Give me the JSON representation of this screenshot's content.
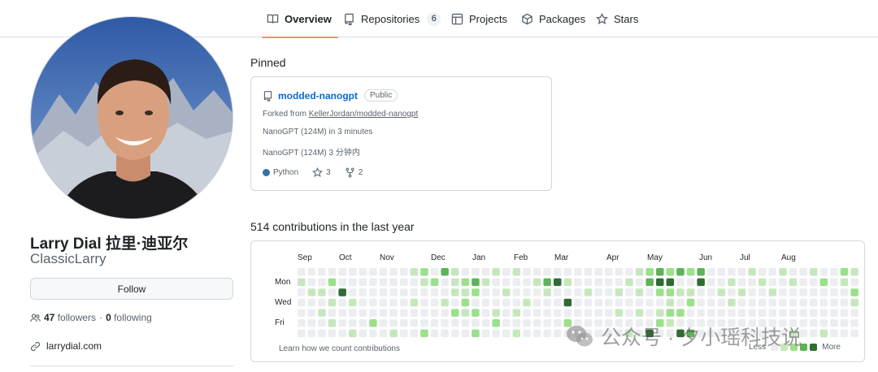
{
  "nav": {
    "tabs": [
      {
        "label": "Overview",
        "icon": "book-icon"
      },
      {
        "label": "Repositories",
        "icon": "repo-icon",
        "count": "6"
      },
      {
        "label": "Projects",
        "icon": "table-icon"
      },
      {
        "label": "Packages",
        "icon": "package-icon"
      },
      {
        "label": "Stars",
        "icon": "star-icon"
      }
    ]
  },
  "profile": {
    "name": "Larry Dial  拉里·迪亚尔",
    "username": "ClassicLarry",
    "follow_label": "Follow",
    "followers_count": "47",
    "followers_label": "followers",
    "separator": "·",
    "following_count": "0",
    "following_label": "following",
    "website": "larrydial.com"
  },
  "pinned": {
    "title": "Pinned",
    "repo": {
      "name": "modded-nanogpt",
      "visibility": "Public",
      "forked_from_label": "Forked from",
      "forked_from": "KellerJordan/modded-nanogpt",
      "description_en": "NanoGPT (124M) in 3 minutes",
      "description_zh": "NanoGPT (124M) 3 分钟内",
      "language": "Python",
      "language_color": "#3572a5",
      "stars": "3",
      "forks": "2"
    }
  },
  "contributions": {
    "title": "514 contributions in the last year",
    "months": [
      "Sep",
      "Oct",
      "Nov",
      "Dec",
      "Jan",
      "Feb",
      "Mar",
      "Apr",
      "May",
      "Jun",
      "Jul",
      "Aug"
    ],
    "days": [
      "Mon",
      "Wed",
      "Fri"
    ],
    "learn_link": "Learn how we count contributions",
    "legend_less": "Less",
    "legend_more": "More",
    "colors": [
      "#ebedf0",
      "#c6e7be",
      "#9be08b",
      "#5fb25a",
      "#2e6c33"
    ],
    "grid": [
      [
        0,
        1,
        0,
        0,
        0,
        0,
        0
      ],
      [
        0,
        0,
        1,
        0,
        0,
        0,
        0
      ],
      [
        0,
        0,
        1,
        0,
        1,
        0,
        0
      ],
      [
        0,
        2,
        0,
        1,
        0,
        1,
        0
      ],
      [
        0,
        0,
        4,
        0,
        0,
        0,
        0
      ],
      [
        0,
        0,
        0,
        1,
        0,
        0,
        1
      ],
      [
        0,
        0,
        0,
        0,
        0,
        0,
        0
      ],
      [
        0,
        0,
        0,
        0,
        0,
        2,
        0
      ],
      [
        0,
        0,
        0,
        0,
        0,
        0,
        0
      ],
      [
        0,
        0,
        0,
        0,
        0,
        0,
        1
      ],
      [
        0,
        0,
        0,
        0,
        0,
        0,
        0
      ],
      [
        1,
        0,
        0,
        1,
        0,
        0,
        0
      ],
      [
        2,
        1,
        0,
        0,
        0,
        0,
        2
      ],
      [
        0,
        2,
        0,
        0,
        0,
        0,
        0
      ],
      [
        3,
        0,
        0,
        1,
        0,
        0,
        0
      ],
      [
        1,
        1,
        1,
        0,
        2,
        0,
        0
      ],
      [
        0,
        2,
        1,
        2,
        1,
        0,
        0
      ],
      [
        0,
        3,
        2,
        0,
        2,
        0,
        2
      ],
      [
        0,
        1,
        0,
        0,
        0,
        0,
        0
      ],
      [
        1,
        0,
        0,
        0,
        1,
        2,
        0
      ],
      [
        0,
        0,
        1,
        0,
        0,
        0,
        0
      ],
      [
        1,
        0,
        0,
        0,
        1,
        0,
        1
      ],
      [
        0,
        0,
        0,
        1,
        0,
        0,
        0
      ],
      [
        0,
        1,
        0,
        0,
        0,
        0,
        0
      ],
      [
        0,
        3,
        1,
        0,
        0,
        0,
        0
      ],
      [
        0,
        4,
        0,
        0,
        0,
        0,
        0
      ],
      [
        0,
        1,
        0,
        4,
        0,
        2,
        0
      ],
      [
        0,
        0,
        0,
        0,
        0,
        0,
        0
      ],
      [
        0,
        0,
        1,
        0,
        0,
        0,
        0
      ],
      [
        0,
        0,
        0,
        0,
        0,
        0,
        0
      ],
      [
        0,
        0,
        0,
        0,
        0,
        0,
        0
      ],
      [
        0,
        0,
        1,
        0,
        1,
        0,
        0
      ],
      [
        0,
        1,
        0,
        0,
        0,
        0,
        1
      ],
      [
        1,
        0,
        1,
        0,
        1,
        0,
        0
      ],
      [
        2,
        3,
        0,
        0,
        0,
        0,
        4
      ],
      [
        3,
        4,
        2,
        0,
        1,
        2,
        0
      ],
      [
        2,
        4,
        2,
        1,
        2,
        1,
        0
      ],
      [
        3,
        0,
        1,
        0,
        2,
        0,
        4
      ],
      [
        2,
        0,
        1,
        2,
        0,
        0,
        3
      ],
      [
        3,
        4,
        0,
        0,
        0,
        0,
        0
      ],
      [
        0,
        0,
        0,
        0,
        0,
        0,
        0
      ],
      [
        0,
        0,
        1,
        0,
        0,
        0,
        0
      ],
      [
        0,
        1,
        0,
        1,
        0,
        0,
        0
      ],
      [
        0,
        0,
        1,
        0,
        0,
        0,
        0
      ],
      [
        1,
        0,
        0,
        0,
        0,
        0,
        0
      ],
      [
        0,
        1,
        0,
        0,
        0,
        0,
        0
      ],
      [
        0,
        0,
        1,
        0,
        0,
        0,
        0
      ],
      [
        1,
        0,
        0,
        0,
        0,
        0,
        0
      ],
      [
        0,
        1,
        0,
        0,
        0,
        0,
        1
      ],
      [
        0,
        0,
        0,
        0,
        0,
        0,
        0
      ],
      [
        1,
        0,
        0,
        0,
        0,
        0,
        0
      ],
      [
        0,
        2,
        0,
        0,
        0,
        0,
        1
      ],
      [
        0,
        0,
        0,
        0,
        0,
        0,
        0
      ],
      [
        2,
        1,
        0,
        0,
        0,
        0,
        0
      ],
      [
        1,
        0,
        2,
        1,
        0,
        0,
        0
      ]
    ]
  },
  "watermark": {
    "text": "公众号 · 夕小瑶科技说"
  }
}
